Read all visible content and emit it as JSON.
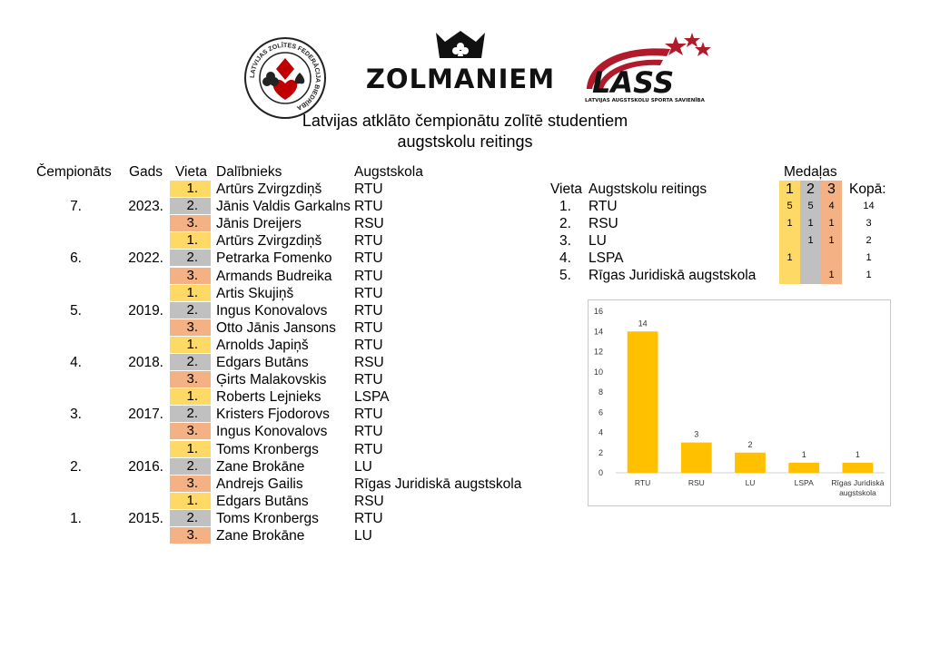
{
  "logos": {
    "seal_text": "LATVIJAS ZOLĪTES FEDERĀCIJA BIEDRĪBA",
    "zolmaniem": "ZOLMANIEM",
    "lass_text": "LASS",
    "lass_subtitle": "LATVIJAS AUGSTSKOLU SPORTA SAVIENĪBA"
  },
  "title_line1": "Latvijas atklāto čempionātu zolītē studentiem",
  "title_line2": "augstskolu reitings",
  "left_table": {
    "headers": {
      "championship": "Čempionāts",
      "year": "Gads",
      "place": "Vieta",
      "participant": "Dalībnieks",
      "school": "Augstskola"
    },
    "groups": [
      {
        "champ": "7.",
        "year": "2023.",
        "rows": [
          {
            "place": "1.",
            "name": "Artūrs Zvirgzdiņš",
            "school": "RTU"
          },
          {
            "place": "2.",
            "name": "Jānis Valdis Garkalns",
            "school": "RTU"
          },
          {
            "place": "3.",
            "name": "Jānis Dreijers",
            "school": "RSU"
          }
        ]
      },
      {
        "champ": "6.",
        "year": "2022.",
        "rows": [
          {
            "place": "1.",
            "name": "Artūrs Zvirgzdiņš",
            "school": "RTU"
          },
          {
            "place": "2.",
            "name": "Petrarka Fomenko",
            "school": "RTU"
          },
          {
            "place": "3.",
            "name": "Armands Budreika",
            "school": "RTU"
          }
        ]
      },
      {
        "champ": "5.",
        "year": "2019.",
        "rows": [
          {
            "place": "1.",
            "name": "Artis Skujiņš",
            "school": "RTU"
          },
          {
            "place": "2.",
            "name": "Ingus Konovalovs",
            "school": "RTU"
          },
          {
            "place": "3.",
            "name": "Otto Jānis Jansons",
            "school": "RTU"
          }
        ]
      },
      {
        "champ": "4.",
        "year": "2018.",
        "rows": [
          {
            "place": "1.",
            "name": "Arnolds Japiņš",
            "school": "RTU"
          },
          {
            "place": "2.",
            "name": "Edgars Butāns",
            "school": "RSU"
          },
          {
            "place": "3.",
            "name": "Ģirts Malakovskis",
            "school": "RTU"
          }
        ]
      },
      {
        "champ": "3.",
        "year": "2017.",
        "rows": [
          {
            "place": "1.",
            "name": "Roberts Lejnieks",
            "school": "LSPA"
          },
          {
            "place": "2.",
            "name": "Kristers Fjodorovs",
            "school": "RTU"
          },
          {
            "place": "3.",
            "name": "Ingus Konovalovs",
            "school": "RTU"
          }
        ]
      },
      {
        "champ": "2.",
        "year": "2016.",
        "rows": [
          {
            "place": "1.",
            "name": "Toms Kronbergs",
            "school": "RTU"
          },
          {
            "place": "2.",
            "name": "Zane Brokāne",
            "school": "LU"
          },
          {
            "place": "3.",
            "name": "Andrejs Gailis",
            "school": "Rīgas Juridiskā augstskola"
          }
        ]
      },
      {
        "champ": "1.",
        "year": "2015.",
        "rows": [
          {
            "place": "1.",
            "name": "Edgars Butāns",
            "school": "RSU"
          },
          {
            "place": "2.",
            "name": "Toms Kronbergs",
            "school": "RTU"
          },
          {
            "place": "3.",
            "name": "Zane Brokāne",
            "school": "LU"
          }
        ]
      }
    ]
  },
  "right_table": {
    "medals_header": "Medaļas",
    "headers": {
      "place": "Vieta",
      "rating": "Augstskolu reitings",
      "m1": "1",
      "m2": "2",
      "m3": "3",
      "total": "Kopā:"
    },
    "rows": [
      {
        "place": "1.",
        "school": "RTU",
        "m1": "5",
        "m2": "5",
        "m3": "4",
        "total": "14"
      },
      {
        "place": "2.",
        "school": "RSU",
        "m1": "1",
        "m2": "1",
        "m3": "1",
        "total": "3"
      },
      {
        "place": "3.",
        "school": "LU",
        "m1": "",
        "m2": "1",
        "m3": "1",
        "total": "2"
      },
      {
        "place": "4.",
        "school": "LSPA",
        "m1": "1",
        "m2": "",
        "m3": "",
        "total": "1"
      },
      {
        "place": "5.",
        "school": "Rīgas Juridiskā augstskola",
        "m1": "",
        "m2": "",
        "m3": "1",
        "total": "1"
      }
    ]
  },
  "colors": {
    "gold": "#ffd966",
    "silver": "#c0c0c0",
    "bronze": "#f4b183",
    "bar": "#ffc000"
  },
  "chart_data": {
    "type": "bar",
    "categories": [
      "RTU",
      "RSU",
      "LU",
      "LSPA",
      "Rīgas Juridiskā augstskola"
    ],
    "category_lines": [
      [
        "RTU"
      ],
      [
        "RSU"
      ],
      [
        "LU"
      ],
      [
        "LSPA"
      ],
      [
        "Rīgas Juridiskā",
        "augstskola"
      ]
    ],
    "values": [
      14,
      3,
      2,
      1,
      1
    ],
    "ylim": [
      0,
      16
    ],
    "yticks": [
      0,
      2,
      4,
      6,
      8,
      10,
      12,
      14,
      16
    ],
    "data_labels": true,
    "grid": false,
    "legend": "none"
  }
}
